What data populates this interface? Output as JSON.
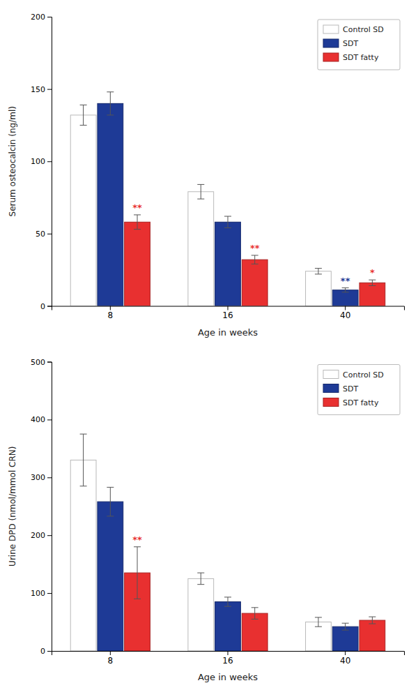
{
  "chart_data": [
    {
      "type": "bar",
      "xlabel": "Age in weeks",
      "ylabel": "Serum osteocalcin (ng/ml)",
      "categories": [
        "8",
        "16",
        "40"
      ],
      "ylim": [
        0,
        200
      ],
      "yticks": [
        0,
        50,
        100,
        150,
        200
      ],
      "grid": false,
      "legend": "upper right",
      "series": [
        {
          "name": "Control SD",
          "color": "#ffffff",
          "values": [
            132,
            79,
            24
          ],
          "errors": [
            7,
            5,
            2
          ]
        },
        {
          "name": "SDT",
          "color": "#1e3a96",
          "values": [
            140,
            58,
            11
          ],
          "errors": [
            8,
            4,
            1.5
          ],
          "significance": [
            null,
            null,
            "**"
          ],
          "significance_y": [
            null,
            null,
            14
          ]
        },
        {
          "name": "SDT fatty",
          "color": "#e83030",
          "values": [
            58,
            32,
            16
          ],
          "errors": [
            5,
            3,
            2
          ],
          "significance": [
            "**",
            "**",
            "*"
          ],
          "significance_y": [
            65,
            37,
            20
          ]
        }
      ]
    },
    {
      "type": "bar",
      "xlabel": "Age in weeks",
      "ylabel": "Urine DPD (nmol/mmol CRN)",
      "categories": [
        "8",
        "16",
        "40"
      ],
      "ylim": [
        0,
        500
      ],
      "yticks": [
        0,
        100,
        200,
        300,
        400,
        500
      ],
      "grid": false,
      "legend": "upper right",
      "series": [
        {
          "name": "Control SD",
          "color": "#ffffff",
          "values": [
            330,
            125,
            50
          ],
          "errors": [
            45,
            10,
            8
          ]
        },
        {
          "name": "SDT",
          "color": "#1e3a96",
          "values": [
            258,
            85,
            42
          ],
          "errors": [
            25,
            8,
            6
          ]
        },
        {
          "name": "SDT fatty",
          "color": "#e83030",
          "values": [
            135,
            65,
            53
          ],
          "errors": [
            45,
            10,
            6
          ],
          "significance": [
            "**",
            null,
            null
          ],
          "significance_y": [
            185,
            null,
            null
          ]
        }
      ]
    }
  ]
}
